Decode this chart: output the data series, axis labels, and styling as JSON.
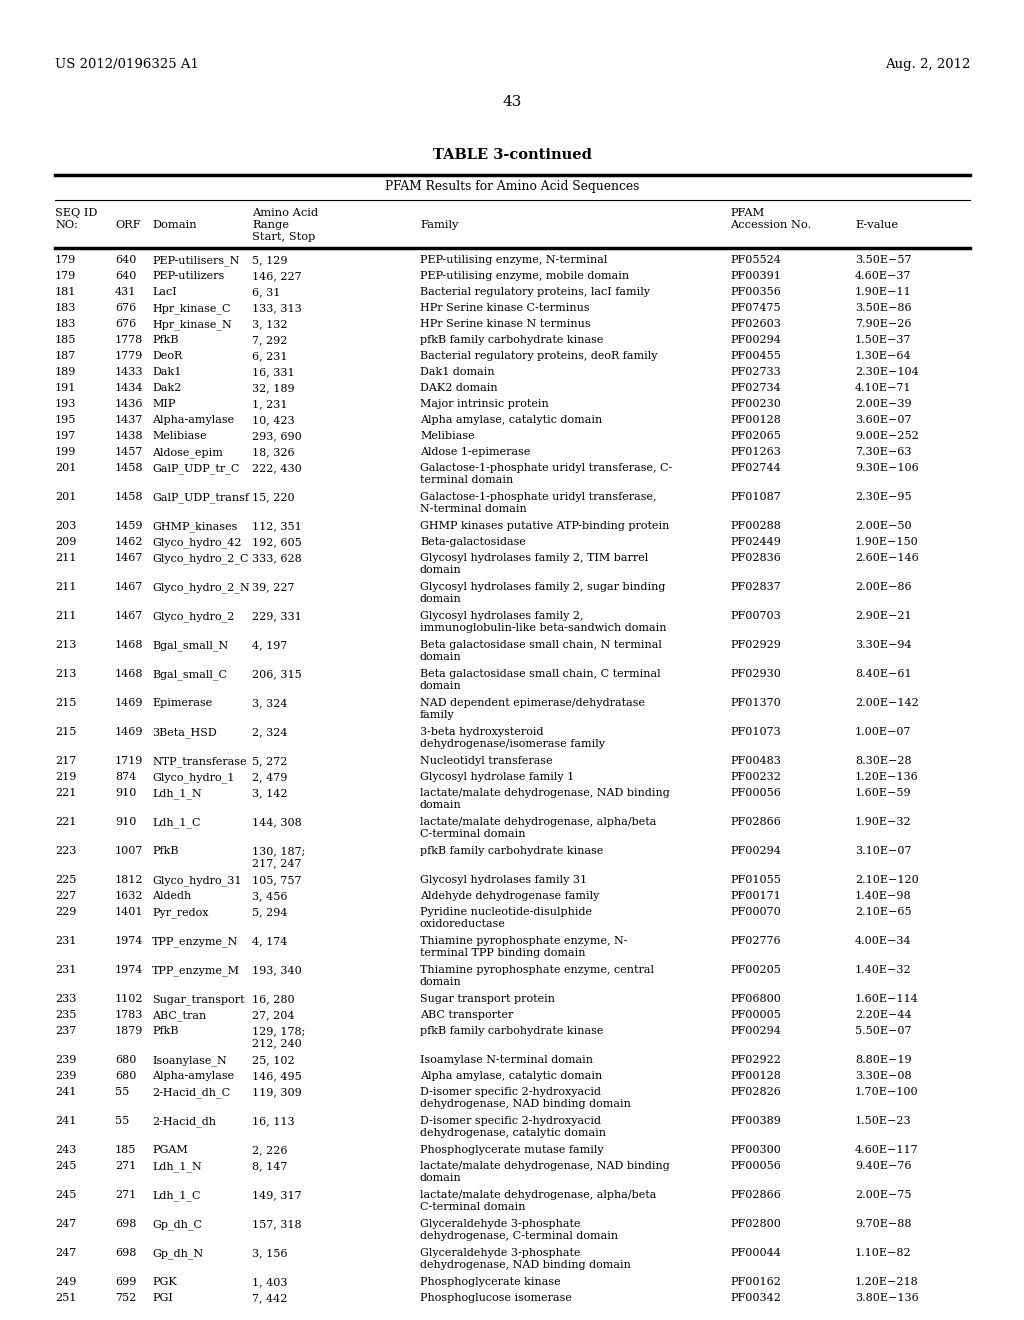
{
  "header_left": "US 2012/0196325 A1",
  "header_right": "Aug. 2, 2012",
  "page_number": "43",
  "table_title": "TABLE 3-continued",
  "table_subtitle": "PFAM Results for Amino Acid Sequences",
  "rows": [
    [
      "179",
      "640",
      "PEP-utilisers_N",
      "5, 129",
      "PEP-utilising enzyme, N-terminal",
      "PF05524",
      "3.50E−57"
    ],
    [
      "179",
      "640",
      "PEP-utilizers",
      "146, 227",
      "PEP-utilising enzyme, mobile domain",
      "PF00391",
      "4.60E−37"
    ],
    [
      "181",
      "431",
      "LacI",
      "6, 31",
      "Bacterial regulatory proteins, lacI family",
      "PF00356",
      "1.90E−11"
    ],
    [
      "183",
      "676",
      "Hpr_kinase_C",
      "133, 313",
      "HPr Serine kinase C-terminus",
      "PF07475",
      "3.50E−86"
    ],
    [
      "183",
      "676",
      "Hpr_kinase_N",
      "3, 132",
      "HPr Serine kinase N terminus",
      "PF02603",
      "7.90E−26"
    ],
    [
      "185",
      "1778",
      "PfkB",
      "7, 292",
      "pfkB family carbohydrate kinase",
      "PF00294",
      "1.50E−37"
    ],
    [
      "187",
      "1779",
      "DeoR",
      "6, 231",
      "Bacterial regulatory proteins, deoR family",
      "PF00455",
      "1.30E−64"
    ],
    [
      "189",
      "1433",
      "Dak1",
      "16, 331",
      "Dak1 domain",
      "PF02733",
      "2.30E−104"
    ],
    [
      "191",
      "1434",
      "Dak2",
      "32, 189",
      "DAK2 domain",
      "PF02734",
      "4.10E−71"
    ],
    [
      "193",
      "1436",
      "MIP",
      "1, 231",
      "Major intrinsic protein",
      "PF00230",
      "2.00E−39"
    ],
    [
      "195",
      "1437",
      "Alpha-amylase",
      "10, 423",
      "Alpha amylase, catalytic domain",
      "PF00128",
      "3.60E−07"
    ],
    [
      "197",
      "1438",
      "Melibiase",
      "293, 690",
      "Melibiase",
      "PF02065",
      "9.00E−252"
    ],
    [
      "199",
      "1457",
      "Aldose_epim",
      "18, 326",
      "Aldose 1-epimerase",
      "PF01263",
      "7.30E−63"
    ],
    [
      "201",
      "1458",
      "GalP_UDP_tr_C",
      "222, 430",
      "Galactose-1-phosphate uridyl transferase, C-\nterminal domain",
      "PF02744",
      "9.30E−106"
    ],
    [
      "201",
      "1458",
      "GalP_UDP_transf",
      "15, 220",
      "Galactose-1-phosphate uridyl transferase,\nN-terminal domain",
      "PF01087",
      "2.30E−95"
    ],
    [
      "203",
      "1459",
      "GHMP_kinases",
      "112, 351",
      "GHMP kinases putative ATP-binding protein",
      "PF00288",
      "2.00E−50"
    ],
    [
      "209",
      "1462",
      "Glyco_hydro_42",
      "192, 605",
      "Beta-galactosidase",
      "PF02449",
      "1.90E−150"
    ],
    [
      "211",
      "1467",
      "Glyco_hydro_2_C",
      "333, 628",
      "Glycosyl hydrolases family 2, TIM barrel\ndomain",
      "PF02836",
      "2.60E−146"
    ],
    [
      "211",
      "1467",
      "Glyco_hydro_2_N",
      "39, 227",
      "Glycosyl hydrolases family 2, sugar binding\ndomain",
      "PF02837",
      "2.00E−86"
    ],
    [
      "211",
      "1467",
      "Glyco_hydro_2",
      "229, 331",
      "Glycosyl hydrolases family 2,\nimmunoglobulin-like beta-sandwich domain",
      "PF00703",
      "2.90E−21"
    ],
    [
      "213",
      "1468",
      "Bgal_small_N",
      "4, 197",
      "Beta galactosidase small chain, N terminal\ndomain",
      "PF02929",
      "3.30E−94"
    ],
    [
      "213",
      "1468",
      "Bgal_small_C",
      "206, 315",
      "Beta galactosidase small chain, C terminal\ndomain",
      "PF02930",
      "8.40E−61"
    ],
    [
      "215",
      "1469",
      "Epimerase",
      "3, 324",
      "NAD dependent epimerase/dehydratase\nfamily",
      "PF01370",
      "2.00E−142"
    ],
    [
      "215",
      "1469",
      "3Beta_HSD",
      "2, 324",
      "3-beta hydroxysteroid\ndehydrogenase/isomerase family",
      "PF01073",
      "1.00E−07"
    ],
    [
      "217",
      "1719",
      "NTP_transferase",
      "5, 272",
      "Nucleotidyl transferase",
      "PF00483",
      "8.30E−28"
    ],
    [
      "219",
      "874",
      "Glyco_hydro_1",
      "2, 479",
      "Glycosyl hydrolase family 1",
      "PF00232",
      "1.20E−136"
    ],
    [
      "221",
      "910",
      "Ldh_1_N",
      "3, 142",
      "lactate/malate dehydrogenase, NAD binding\ndomain",
      "PF00056",
      "1.60E−59"
    ],
    [
      "221",
      "910",
      "Ldh_1_C",
      "144, 308",
      "lactate/malate dehydrogenase, alpha/beta\nC-terminal domain",
      "PF02866",
      "1.90E−32"
    ],
    [
      "223",
      "1007",
      "PfkB",
      "130, 187;\n217, 247",
      "pfkB family carbohydrate kinase",
      "PF00294",
      "3.10E−07"
    ],
    [
      "225",
      "1812",
      "Glyco_hydro_31",
      "105, 757",
      "Glycosyl hydrolases family 31",
      "PF01055",
      "2.10E−120"
    ],
    [
      "227",
      "1632",
      "Aldedh",
      "3, 456",
      "Aldehyde dehydrogenase family",
      "PF00171",
      "1.40E−98"
    ],
    [
      "229",
      "1401",
      "Pyr_redox",
      "5, 294",
      "Pyridine nucleotide-disulphide\noxidoreductase",
      "PF00070",
      "2.10E−65"
    ],
    [
      "231",
      "1974",
      "TPP_enzyme_N",
      "4, 174",
      "Thiamine pyrophosphate enzyme, N-\nterminal TPP binding domain",
      "PF02776",
      "4.00E−34"
    ],
    [
      "231",
      "1974",
      "TPP_enzyme_M",
      "193, 340",
      "Thiamine pyrophosphate enzyme, central\ndomain",
      "PF00205",
      "1.40E−32"
    ],
    [
      "233",
      "1102",
      "Sugar_transport",
      "16, 280",
      "Sugar transport protein",
      "PF06800",
      "1.60E−114"
    ],
    [
      "235",
      "1783",
      "ABC_tran",
      "27, 204",
      "ABC transporter",
      "PF00005",
      "2.20E−44"
    ],
    [
      "237",
      "1879",
      "PfkB",
      "129, 178;\n212, 240",
      "pfkB family carbohydrate kinase",
      "PF00294",
      "5.50E−07"
    ],
    [
      "239",
      "680",
      "Isoanylase_N",
      "25, 102",
      "Isoamylase N-terminal domain",
      "PF02922",
      "8.80E−19"
    ],
    [
      "239",
      "680",
      "Alpha-amylase",
      "146, 495",
      "Alpha amylase, catalytic domain",
      "PF00128",
      "3.30E−08"
    ],
    [
      "241",
      "55",
      "2-Hacid_dh_C",
      "119, 309",
      "D-isomer specific 2-hydroxyacid\ndehydrogenase, NAD binding domain",
      "PF02826",
      "1.70E−100"
    ],
    [
      "241",
      "55",
      "2-Hacid_dh",
      "16, 113",
      "D-isomer specific 2-hydroxyacid\ndehydrogenase, catalytic domain",
      "PF00389",
      "1.50E−23"
    ],
    [
      "243",
      "185",
      "PGAM",
      "2, 226",
      "Phosphoglycerate mutase family",
      "PF00300",
      "4.60E−117"
    ],
    [
      "245",
      "271",
      "Ldh_1_N",
      "8, 147",
      "lactate/malate dehydrogenase, NAD binding\ndomain",
      "PF00056",
      "9.40E−76"
    ],
    [
      "245",
      "271",
      "Ldh_1_C",
      "149, 317",
      "lactate/malate dehydrogenase, alpha/beta\nC-terminal domain",
      "PF02866",
      "2.00E−75"
    ],
    [
      "247",
      "698",
      "Gp_dh_C",
      "157, 318",
      "Glyceraldehyde 3-phosphate\ndehydrogenase, C-terminal domain",
      "PF02800",
      "9.70E−88"
    ],
    [
      "247",
      "698",
      "Gp_dh_N",
      "3, 156",
      "Glyceraldehyde 3-phosphate\ndehydrogenase, NAD binding domain",
      "PF00044",
      "1.10E−82"
    ],
    [
      "249",
      "699",
      "PGK",
      "1, 403",
      "Phosphoglycerate kinase",
      "PF00162",
      "1.20E−218"
    ],
    [
      "251",
      "752",
      "PGI",
      "7, 442",
      "Phosphoglucose isomerase",
      "PF00342",
      "3.80E−136"
    ]
  ]
}
